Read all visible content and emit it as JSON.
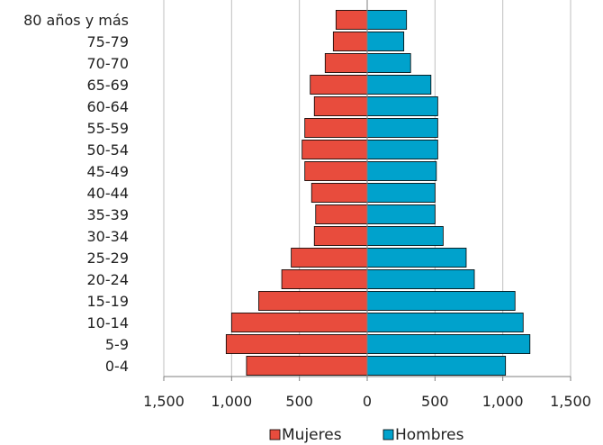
{
  "chart_data": {
    "type": "bar",
    "orientation": "horizontal",
    "layout": "population-pyramid",
    "categories": [
      "80 años y más",
      "75-79",
      "70-70",
      "65-69",
      "60-64",
      "55-59",
      "50-54",
      "45-49",
      "40-44",
      "35-39",
      "30-34",
      "25-29",
      "20-24",
      "15-19",
      "10-14",
      "5-9",
      "0-4"
    ],
    "series": [
      {
        "name": "Mujeres",
        "color": "#e84c3d",
        "side": "left",
        "values": [
          230,
          250,
          310,
          420,
          390,
          460,
          480,
          460,
          410,
          380,
          390,
          560,
          630,
          800,
          1000,
          1040,
          890
        ]
      },
      {
        "name": "Hombres",
        "color": "#00a2cc",
        "side": "right",
        "values": [
          290,
          270,
          320,
          470,
          520,
          520,
          520,
          510,
          500,
          500,
          560,
          730,
          790,
          1090,
          1150,
          1200,
          1020
        ]
      }
    ],
    "xlim": [
      -1500,
      1500
    ],
    "x_ticks": [
      -1500,
      -1000,
      -500,
      0,
      500,
      1000,
      1500
    ],
    "x_tick_labels": [
      "1,500",
      "1,000",
      "500",
      "0",
      "500",
      "1,000",
      "1,500"
    ],
    "grid": "vertical",
    "legend": "bottom-center"
  }
}
